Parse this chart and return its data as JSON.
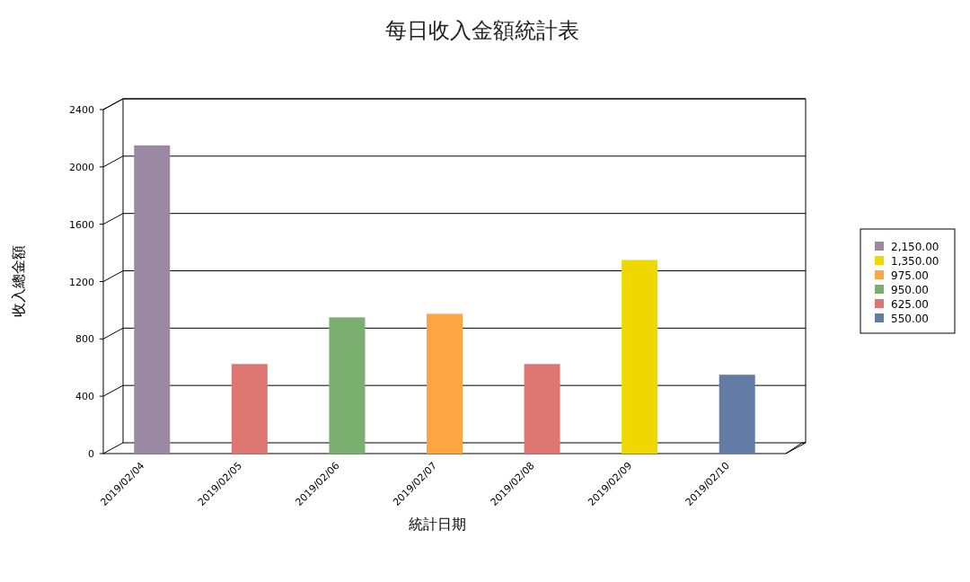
{
  "chart_data": {
    "type": "bar",
    "title": "每日收入金額統計表",
    "xlabel": "統計日期",
    "ylabel": "收入總金額",
    "categories": [
      "2019/02/04",
      "2019/02/05",
      "2019/02/06",
      "2019/02/07",
      "2019/02/08",
      "2019/02/09",
      "2019/02/10"
    ],
    "stacked": true,
    "series": [
      {
        "name": "2,150.00",
        "color": "#9b89a3",
        "values": [
          2150,
          null,
          null,
          null,
          null,
          null,
          null
        ]
      },
      {
        "name": "1,350.00",
        "color": "#eed800",
        "values": [
          null,
          null,
          null,
          null,
          null,
          1350,
          null
        ]
      },
      {
        "name": "975.00",
        "color": "#fda443",
        "values": [
          null,
          null,
          null,
          975,
          null,
          null,
          null
        ]
      },
      {
        "name": "950.00",
        "color": "#7aaf6f",
        "values": [
          null,
          null,
          950,
          null,
          null,
          null,
          null
        ]
      },
      {
        "name": "625.00",
        "color": "#dd7670",
        "values": [
          null,
          625,
          null,
          null,
          625,
          null,
          null
        ]
      },
      {
        "name": "550.00",
        "color": "#627ca6",
        "values": [
          null,
          null,
          null,
          null,
          null,
          null,
          550
        ]
      }
    ],
    "ylim": [
      0,
      2400
    ],
    "yticks": [
      0,
      400,
      800,
      1200,
      1600,
      2000,
      2400
    ],
    "grid": "y",
    "legend": "right"
  }
}
